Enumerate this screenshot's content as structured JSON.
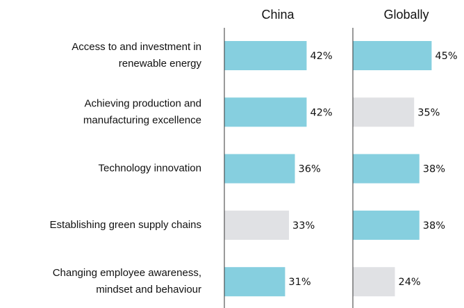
{
  "chart_data": {
    "type": "bar",
    "orientation": "horizontal",
    "categories": [
      [
        "Access to and investment in",
        "renewable energy"
      ],
      [
        "Achieving production and",
        "manufacturing excellence"
      ],
      [
        "Technology innovation"
      ],
      [
        "Establishing green supply chains"
      ],
      [
        "Changing employee awareness,",
        "mindset and behaviour"
      ]
    ],
    "series": [
      {
        "name": "China",
        "values": [
          42,
          42,
          36,
          33,
          31
        ],
        "value_labels": [
          "42%",
          "42%",
          "36%",
          "33%",
          "31%"
        ],
        "colors": [
          "#86cfdf",
          "#86cfdf",
          "#86cfdf",
          "#e0e1e4",
          "#86cfdf"
        ],
        "xlim": [
          0,
          50
        ]
      },
      {
        "name": "Globally",
        "values": [
          45,
          35,
          38,
          38,
          24
        ],
        "value_labels": [
          "45%",
          "35%",
          "38%",
          "38%",
          "24%"
        ],
        "colors": [
          "#86cfdf",
          "#e0e1e4",
          "#86cfdf",
          "#86cfdf",
          "#e0e1e4"
        ],
        "xlim": [
          0,
          50
        ]
      }
    ]
  }
}
